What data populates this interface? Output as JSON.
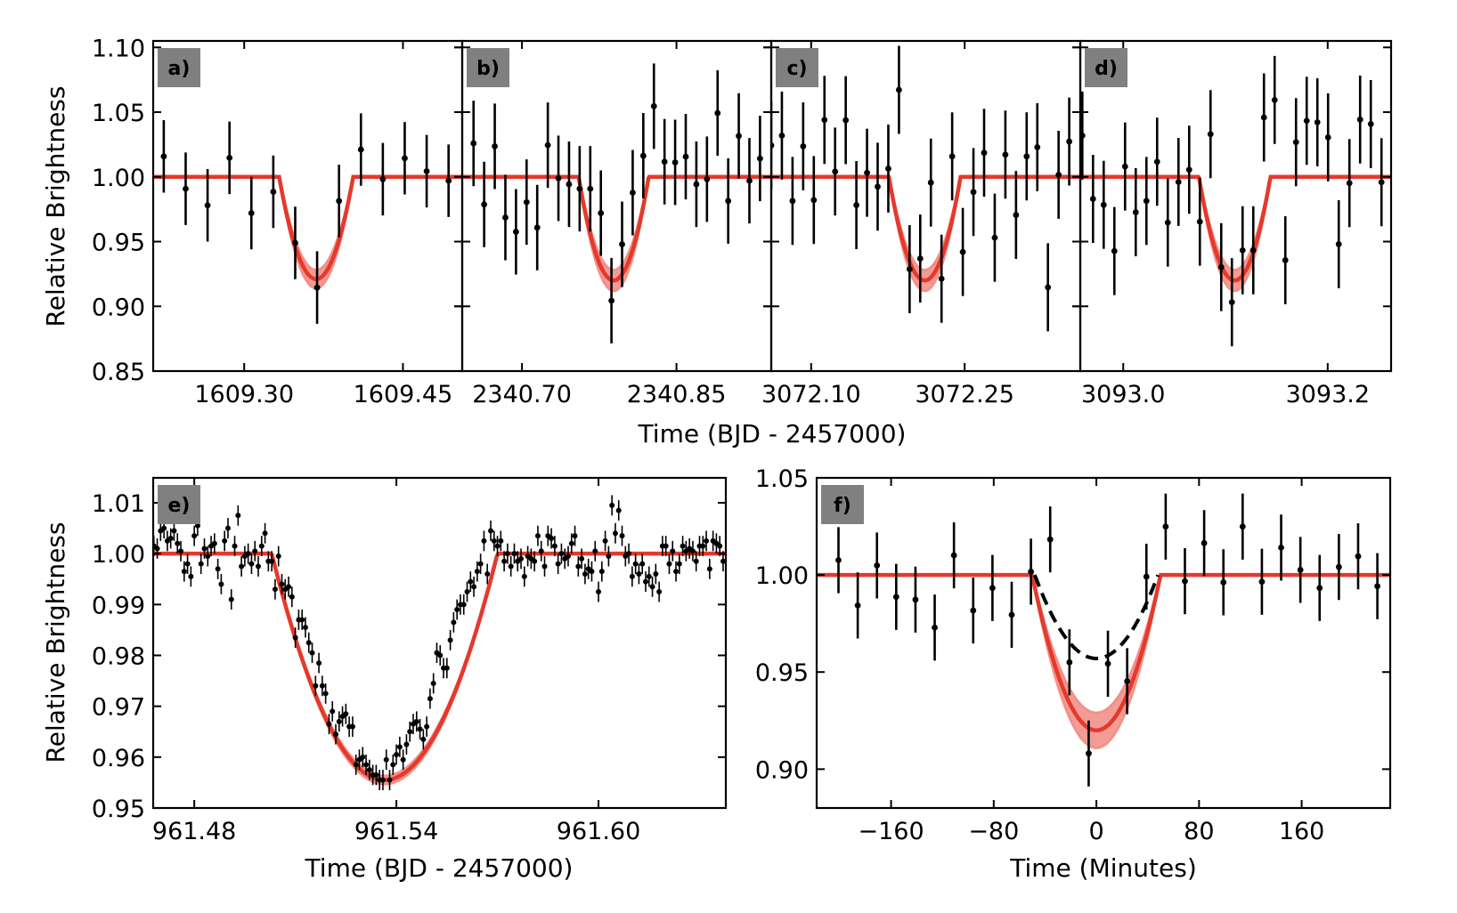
{
  "figure": {
    "top_xlabel": "Time (BJD - 2457000)",
    "top_ylabel": "Relative Brightness",
    "bottom_left_xlabel": "Time (BJD - 2457000)",
    "bottom_left_ylabel": "Relative Brightness",
    "bottom_right_xlabel": "Time (Minutes)",
    "colors": {
      "model": "#e5392b",
      "band": "#f2918a",
      "points": "#000000",
      "tag_bg": "#808080",
      "dashed": "#000000"
    }
  },
  "chart_data": [
    {
      "type": "scatter",
      "label": "a)",
      "xlim": [
        1609.214,
        1609.506
      ],
      "ylim": [
        0.85,
        1.105
      ],
      "xticks": [
        {
          "v": 1609.3,
          "t": "1609.30"
        },
        {
          "v": 1609.45,
          "t": "1609.45"
        }
      ],
      "yticks": [
        {
          "v": 0.85,
          "t": "0.85"
        },
        {
          "v": 0.9,
          "t": "0.90"
        },
        {
          "v": 0.95,
          "t": "0.95"
        },
        {
          "v": 1.0,
          "t": "1.00"
        },
        {
          "v": 1.05,
          "t": "1.05"
        },
        {
          "v": 1.1,
          "t": "1.10"
        }
      ],
      "show_ytick_labels": true,
      "t_start": 1609.224,
      "t_step": 0.0207,
      "err": 0.028,
      "values": [
        1.0158,
        0.9908,
        0.978,
        1.0147,
        0.972,
        0.9885,
        0.949,
        0.9145,
        0.9814,
        1.0211,
        0.9982,
        1.0144,
        1.0044,
        0.997
      ],
      "model": {
        "t0": 1609.368,
        "half_duration": 0.035,
        "depth": 0.079,
        "band": 0.007
      }
    },
    {
      "type": "scatter",
      "label": "b)",
      "xlim": [
        2340.642,
        2340.942
      ],
      "ylim": [
        0.85,
        1.105
      ],
      "xticks": [
        {
          "v": 2340.7,
          "t": "2340.70"
        },
        {
          "v": 2340.85,
          "t": "2340.85"
        }
      ],
      "yticks": [
        {
          "v": 0.85,
          "t": ""
        },
        {
          "v": 0.9,
          "t": ""
        },
        {
          "v": 0.95,
          "t": ""
        },
        {
          "v": 1.0,
          "t": ""
        },
        {
          "v": 1.05,
          "t": ""
        },
        {
          "v": 1.1,
          "t": ""
        }
      ],
      "show_ytick_labels": false,
      "t_start": 2340.653,
      "t_step": 0.0103,
      "err": 0.033,
      "values": [
        1.0259,
        0.9787,
        1.0236,
        0.9686,
        0.9576,
        0.9805,
        0.9608,
        1.0245,
        0.9989,
        0.9943,
        0.9908,
        0.9908,
        0.972,
        0.9044,
        0.9479,
        0.9878,
        1.0163,
        1.0546,
        1.0117,
        1.0112,
        1.0156,
        0.9943,
        0.9982,
        1.0493,
        0.9814,
        1.0316,
        0.997,
        1.0142
      ],
      "model": {
        "t0": 2340.789,
        "half_duration": 0.034,
        "depth": 0.08,
        "band": 0.008
      }
    },
    {
      "type": "scatter",
      "label": "c)",
      "xlim": [
        3072.061,
        3072.363
      ],
      "ylim": [
        0.85,
        1.105
      ],
      "xticks": [
        {
          "v": 3072.1,
          "t": "3072.10"
        },
        {
          "v": 3072.25,
          "t": "3072.25"
        }
      ],
      "yticks": [
        {
          "v": 0.85,
          "t": ""
        },
        {
          "v": 0.9,
          "t": ""
        },
        {
          "v": 0.95,
          "t": ""
        },
        {
          "v": 1.0,
          "t": ""
        },
        {
          "v": 1.05,
          "t": ""
        },
        {
          "v": 1.1,
          "t": ""
        }
      ],
      "show_ytick_labels": false,
      "t_start": 3072.061,
      "t_step": 0.0104,
      "err": 0.034,
      "values": [
        1.0243,
        1.0319,
        0.9814,
        1.0236,
        0.9821,
        1.044,
        1.0041,
        1.0438,
        0.9782,
        1.0032,
        0.9924,
        1.0064,
        1.0672,
        0.9287,
        0.9369,
        0.9956,
        0.9213,
        1.0158,
        0.942,
        0.9883,
        1.0186,
        0.953,
        1.0172,
        0.9706,
        1.0158,
        1.0229,
        0.9147,
        1.0016,
        1.0273
      ],
      "model": {
        "t0": 3072.211,
        "half_duration": 0.035,
        "depth": 0.08,
        "band": 0.008
      }
    },
    {
      "type": "scatter",
      "label": "d)",
      "xlim": [
        3092.958,
        3093.262
      ],
      "ylim": [
        0.85,
        1.105
      ],
      "xticks": [
        {
          "v": 3093.0,
          "t": "3093.0"
        },
        {
          "v": 3093.2,
          "t": "3093.2"
        }
      ],
      "yticks": [
        {
          "v": 0.85,
          "t": ""
        },
        {
          "v": 0.9,
          "t": ""
        },
        {
          "v": 0.95,
          "t": ""
        },
        {
          "v": 1.0,
          "t": ""
        },
        {
          "v": 1.05,
          "t": ""
        },
        {
          "v": 1.1,
          "t": ""
        }
      ],
      "show_ytick_labels": false,
      "t_start": 3092.96,
      "t_step": 0.01045,
      "err": 0.034,
      "values": [
        1.0319,
        0.983,
        0.9784,
        0.9427,
        1.008,
        0.9727,
        0.9814,
        1.0117,
        0.9647,
        0.9961,
        1.0055,
        0.9654,
        1.033,
        0.9303,
        0.9032,
        0.9433,
        0.9433,
        1.0459,
        1.0594,
        0.9356,
        1.0268,
        1.0433,
        1.0422,
        1.0305,
        0.948,
        0.9952,
        1.0443,
        1.0408,
        0.9959
      ],
      "model": {
        "t0": 3093.109,
        "half_duration": 0.035,
        "depth": 0.08,
        "band": 0.008
      }
    },
    {
      "type": "scatter",
      "label": "e)",
      "xlim": [
        961.4678,
        961.6378
      ],
      "ylim": [
        0.95,
        1.0149
      ],
      "xticks": [
        {
          "v": 961.48,
          "t": "961.48"
        },
        {
          "v": 961.54,
          "t": "961.54"
        },
        {
          "v": 961.6,
          "t": "961.60"
        }
      ],
      "yticks": [
        {
          "v": 0.95,
          "t": "0.95"
        },
        {
          "v": 0.96,
          "t": "0.96"
        },
        {
          "v": 0.97,
          "t": "0.97"
        },
        {
          "v": 0.98,
          "t": "0.98"
        },
        {
          "v": 0.99,
          "t": "0.99"
        },
        {
          "v": 1.0,
          "t": "1.00"
        },
        {
          "v": 1.01,
          "t": "1.01"
        }
      ],
      "show_ytick_labels": true,
      "t_start": 961.468,
      "t_step": 0.001,
      "err": 0.002,
      "values": [
        1.0015,
        1.001,
        1.0045,
        1.005,
        1.0025,
        1.003,
        1.0045,
        1.002,
        1.0005,
        0.9965,
        0.998,
        0.9955,
        1.0035,
        1.0055,
        0.998,
        1.001,
        0.9995,
        1.0015,
        1.002,
        0.997,
        0.994,
        1.0025,
        1.005,
        0.991,
        1.0015,
        1.0075,
        0.9975,
        0.9995,
        1.0,
        0.998,
        1.0005,
        0.9975,
        1.0015,
        1.004,
        0.9985,
        0.9985,
        0.993,
        0.9995,
        0.994,
        0.993,
        0.9935,
        0.9915,
        0.9835,
        0.987,
        0.987,
        0.9855,
        0.9825,
        0.9805,
        0.974,
        0.9785,
        0.974,
        0.9725,
        0.9665,
        0.969,
        0.9645,
        0.967,
        0.968,
        0.9685,
        0.966,
        0.966,
        0.9585,
        0.9595,
        0.96,
        0.9585,
        0.9575,
        0.9565,
        0.9565,
        0.9555,
        0.9555,
        0.9595,
        0.9555,
        0.9585,
        0.9605,
        0.962,
        0.9595,
        0.9625,
        0.965,
        0.9665,
        0.967,
        0.9655,
        0.9635,
        0.966,
        0.9715,
        0.9745,
        0.9805,
        0.98,
        0.9775,
        0.9775,
        0.983,
        0.9865,
        0.989,
        0.99,
        0.99,
        0.9925,
        0.9945,
        0.9935,
        0.9965,
        0.998,
        1.0025,
        0.996,
        1.0045,
        1.0025,
        1.0015,
        1.0025,
        0.9985,
        1.0,
        0.9975,
        1.0,
        0.9985,
        0.999,
        0.9955,
        0.9995,
        0.999,
        0.9985,
        1.0035,
        1.0005,
        0.9975,
        1.0035,
        1.003,
        1.0015,
        0.998,
        1.0,
        0.999,
        0.9995,
        1.002,
        1.0035,
        0.9975,
        0.999,
        0.996,
        0.997,
        0.9965,
        1.0005,
        0.9925,
        0.9965,
        1.0025,
        0.9995,
        1.0095,
        1.004,
        1.0085,
        1.0035,
        0.9995,
        1.0,
        0.9955,
        0.998,
        0.996,
        0.998,
        0.9945,
        0.9955,
        0.9935,
        0.996,
        0.9925,
        1.0015,
        1.0015,
        0.998,
        1.0005,
        0.9965,
        0.998,
        1.0015,
        1.0005,
        1.001,
        1.0005,
        0.9985,
        1.0015,
        1.0015,
        1.0025,
        0.997,
        1.0025,
        1.002,
        1.0015,
        0.9985
      ],
      "model": {
        "t0": 961.5365,
        "half_duration": 0.0335,
        "depth": 0.0445,
        "band": 0.0008
      }
    },
    {
      "type": "scatter",
      "label": "f)",
      "xlim": [
        -218,
        229
      ],
      "ylim": [
        0.88,
        1.05
      ],
      "xticks": [
        {
          "v": -160,
          "t": "−160"
        },
        {
          "v": -80,
          "t": "−80"
        },
        {
          "v": 0,
          "t": "0"
        },
        {
          "v": 80,
          "t": "80"
        },
        {
          "v": 160,
          "t": "160"
        }
      ],
      "yticks": [
        {
          "v": 0.9,
          "t": "0.90"
        },
        {
          "v": 0.95,
          "t": "0.95"
        },
        {
          "v": 1.0,
          "t": "1.00"
        },
        {
          "v": 1.05,
          "t": "1.05"
        }
      ],
      "show_ytick_labels": true,
      "t_start": -201,
      "t_step": 15,
      "err": 0.017,
      "values": [
        1.0076,
        0.9843,
        1.0049,
        0.9887,
        0.9873,
        0.9729,
        1.0101,
        0.9817,
        0.9933,
        0.9795,
        1.0017,
        1.0183,
        0.955,
        0.9081,
        0.9543,
        0.9453,
        0.9991,
        1.0249,
        0.9968,
        1.0164,
        0.9962,
        1.0249,
        0.9965,
        1.0141,
        1.0026,
        0.9933,
        1.0041,
        1.0096,
        0.9942
      ],
      "model": {
        "t0": 0,
        "half_duration": 50,
        "depth": 0.08,
        "band": 0.009
      },
      "dashed_model": {
        "t0": 0,
        "half_duration": 48,
        "depth": 0.043
      }
    }
  ]
}
